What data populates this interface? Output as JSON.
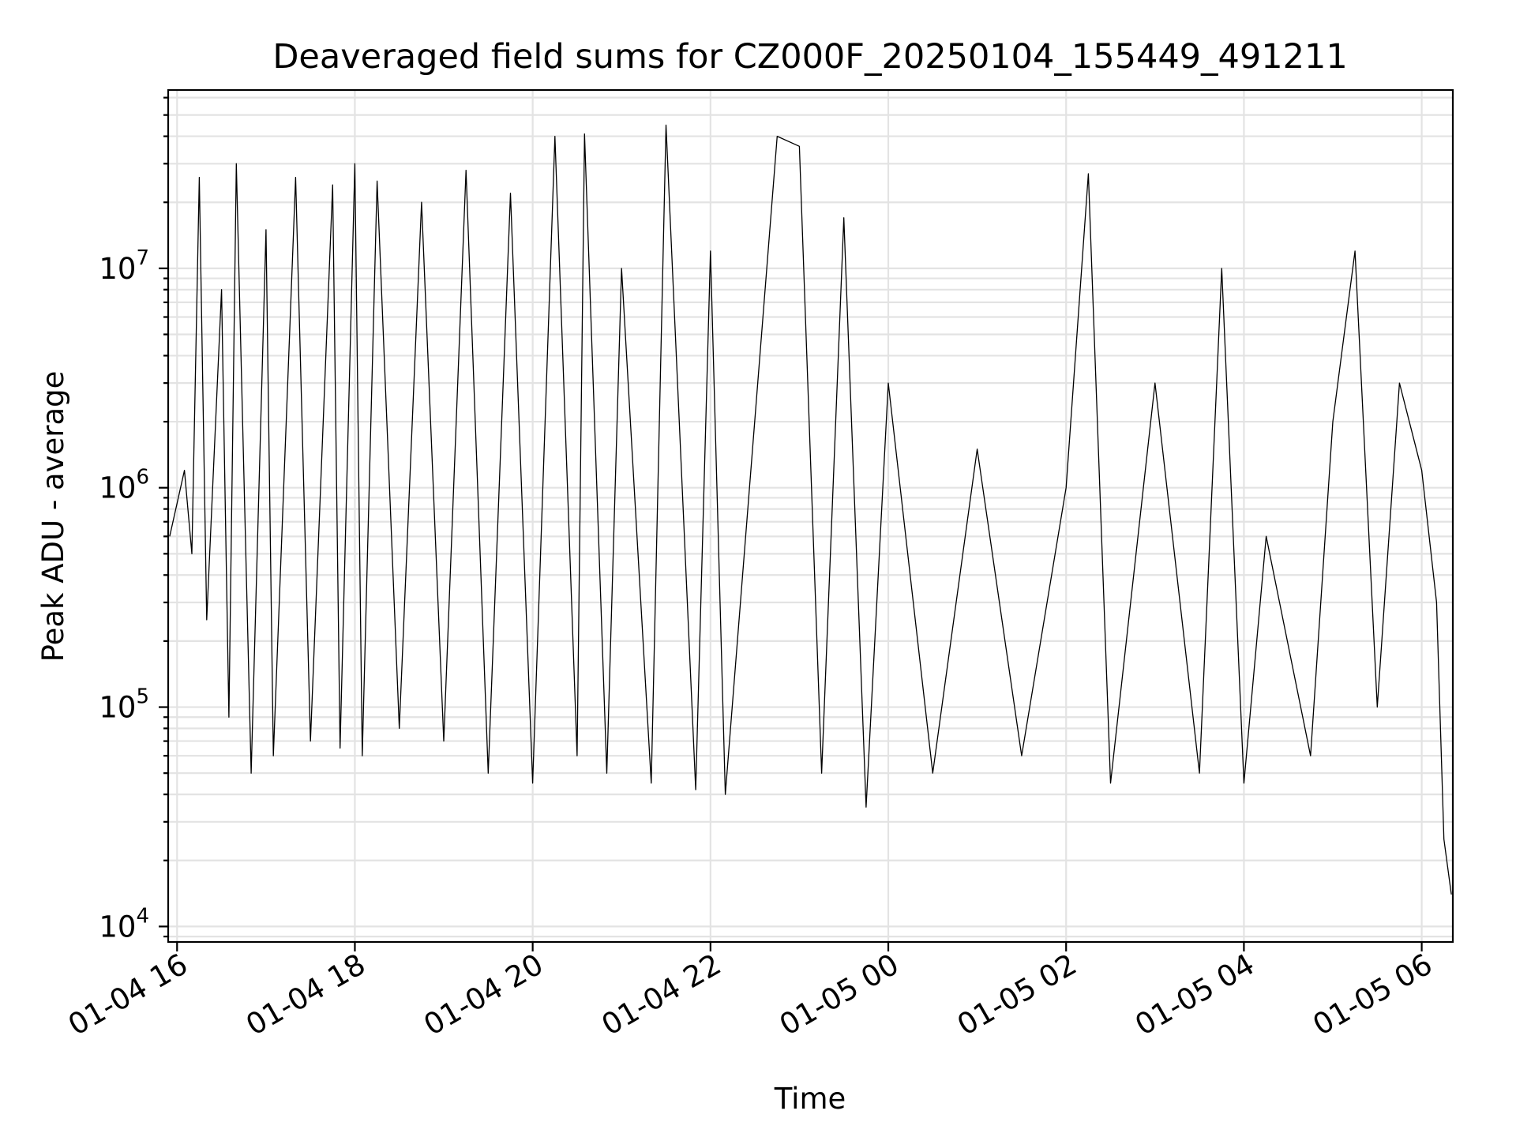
{
  "chart_data": {
    "type": "line",
    "title": "Deaveraged field sums for CZ000F_20250104_155449_491211",
    "xlabel": "Time",
    "ylabel": "Peak ADU - average",
    "yscale": "log",
    "x_range": [
      "2025-01-04 15:54",
      "2025-01-05 06:21"
    ],
    "ylim": [
      8500,
      65000000
    ],
    "grid": true,
    "line_color": "#000000",
    "x_ticks": [
      {
        "t": "2025-01-04 16:00",
        "label": "01-04 16"
      },
      {
        "t": "2025-01-04 18:00",
        "label": "01-04 18"
      },
      {
        "t": "2025-01-04 20:00",
        "label": "01-04 20"
      },
      {
        "t": "2025-01-04 22:00",
        "label": "01-04 22"
      },
      {
        "t": "2025-01-05 00:00",
        "label": "01-05 00"
      },
      {
        "t": "2025-01-05 02:00",
        "label": "01-05 02"
      },
      {
        "t": "2025-01-05 04:00",
        "label": "01-05 04"
      },
      {
        "t": "2025-01-05 06:00",
        "label": "01-05 06"
      }
    ],
    "y_ticks": [
      {
        "value": 10000,
        "base": "10",
        "exp": "4"
      },
      {
        "value": 100000,
        "base": "10",
        "exp": "5"
      },
      {
        "value": 1000000,
        "base": "10",
        "exp": "6"
      },
      {
        "value": 10000000,
        "base": "10",
        "exp": "7"
      }
    ],
    "series": [
      {
        "values": [
          [
            "2025-01-04 15:55",
            600000
          ],
          [
            "2025-01-04 16:05",
            1200000
          ],
          [
            "2025-01-04 16:10",
            500000
          ],
          [
            "2025-01-04 16:15",
            26000000
          ],
          [
            "2025-01-04 16:20",
            250000
          ],
          [
            "2025-01-04 16:30",
            8000000
          ],
          [
            "2025-01-04 16:35",
            90000
          ],
          [
            "2025-01-04 16:40",
            30000000
          ],
          [
            "2025-01-04 16:50",
            50000
          ],
          [
            "2025-01-04 17:00",
            15000000
          ],
          [
            "2025-01-04 17:05",
            60000
          ],
          [
            "2025-01-04 17:20",
            26000000
          ],
          [
            "2025-01-04 17:30",
            70000
          ],
          [
            "2025-01-04 17:45",
            24000000
          ],
          [
            "2025-01-04 17:50",
            65000
          ],
          [
            "2025-01-04 18:00",
            30000000
          ],
          [
            "2025-01-04 18:05",
            60000
          ],
          [
            "2025-01-04 18:15",
            25000000
          ],
          [
            "2025-01-04 18:30",
            80000
          ],
          [
            "2025-01-04 18:45",
            20000000
          ],
          [
            "2025-01-04 19:00",
            70000
          ],
          [
            "2025-01-04 19:15",
            28000000
          ],
          [
            "2025-01-04 19:30",
            50000
          ],
          [
            "2025-01-04 19:45",
            22000000
          ],
          [
            "2025-01-04 20:00",
            45000
          ],
          [
            "2025-01-04 20:15",
            40000000
          ],
          [
            "2025-01-04 20:30",
            60000
          ],
          [
            "2025-01-04 20:35",
            41000000
          ],
          [
            "2025-01-04 20:50",
            50000
          ],
          [
            "2025-01-04 21:00",
            10000000
          ],
          [
            "2025-01-04 21:20",
            45000
          ],
          [
            "2025-01-04 21:30",
            45000000
          ],
          [
            "2025-01-04 21:50",
            42000
          ],
          [
            "2025-01-04 22:00",
            12000000
          ],
          [
            "2025-01-04 22:10",
            40000
          ],
          [
            "2025-01-04 22:45",
            40000000
          ],
          [
            "2025-01-04 23:00",
            36000000
          ],
          [
            "2025-01-04 23:15",
            50000
          ],
          [
            "2025-01-04 23:30",
            17000000
          ],
          [
            "2025-01-04 23:45",
            35000
          ],
          [
            "2025-01-05 00:00",
            3000000
          ],
          [
            "2025-01-05 00:30",
            50000
          ],
          [
            "2025-01-05 01:00",
            1500000
          ],
          [
            "2025-01-05 01:30",
            60000
          ],
          [
            "2025-01-05 02:00",
            1000000
          ],
          [
            "2025-01-05 02:15",
            27000000
          ],
          [
            "2025-01-05 02:30",
            45000
          ],
          [
            "2025-01-05 03:00",
            3000000
          ],
          [
            "2025-01-05 03:30",
            50000
          ],
          [
            "2025-01-05 03:45",
            10000000
          ],
          [
            "2025-01-05 04:00",
            45000
          ],
          [
            "2025-01-05 04:15",
            600000
          ],
          [
            "2025-01-05 04:45",
            60000
          ],
          [
            "2025-01-05 05:00",
            2000000
          ],
          [
            "2025-01-05 05:15",
            12000000
          ],
          [
            "2025-01-05 05:30",
            100000
          ],
          [
            "2025-01-05 05:45",
            3000000
          ],
          [
            "2025-01-05 06:00",
            1200000
          ],
          [
            "2025-01-05 06:10",
            300000
          ],
          [
            "2025-01-05 06:15",
            25000
          ],
          [
            "2025-01-05 06:20",
            14000
          ]
        ]
      }
    ]
  }
}
